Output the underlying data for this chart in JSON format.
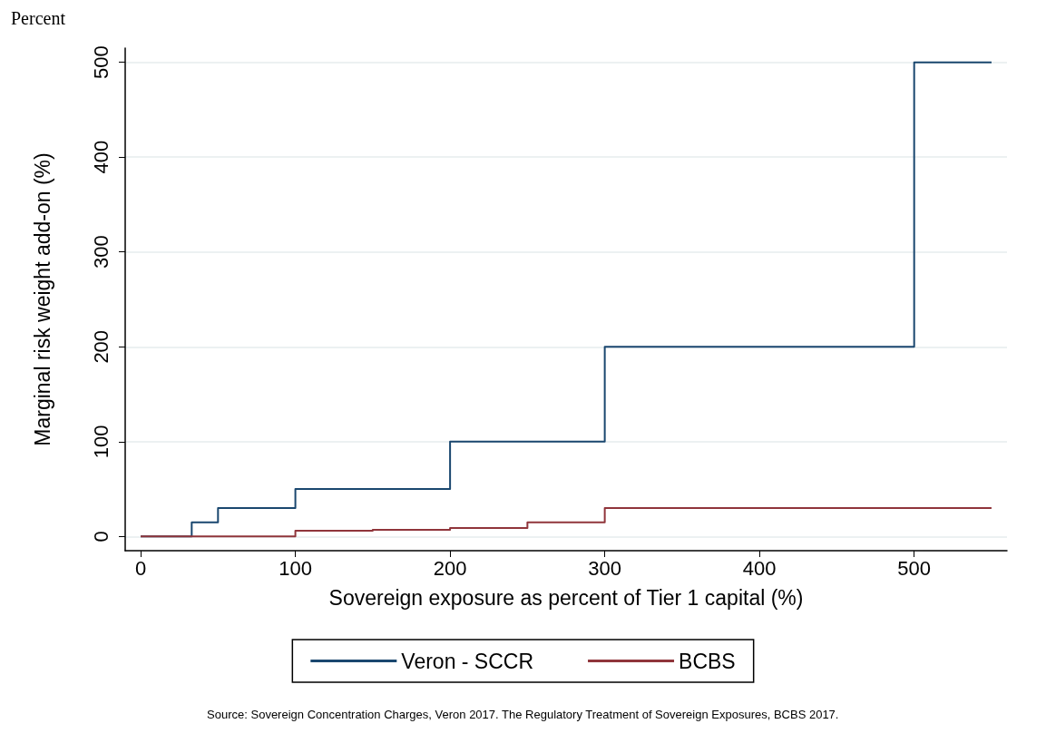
{
  "chart_data": {
    "type": "step",
    "xlabel": "Sovereign exposure as percent of Tier 1 capital (%)",
    "ylabel": "Marginal risk weight add-on (%)",
    "series": [
      {
        "name": "Veron - SCCR",
        "color": "#1a476f",
        "x": [
          0,
          33,
          50,
          100,
          200,
          300,
          500,
          550
        ],
        "values": [
          0,
          15,
          30,
          50,
          100,
          200,
          500,
          500
        ]
      },
      {
        "name": "BCBS",
        "color": "#90353b",
        "x": [
          0,
          100,
          150,
          200,
          250,
          300,
          550
        ],
        "values": [
          0,
          6,
          7,
          9,
          15,
          30,
          30
        ]
      }
    ],
    "xlim": [
      -10,
      560
    ],
    "xticks": [
      0,
      100,
      200,
      300,
      400,
      500
    ],
    "ylim": [
      -15,
      515
    ],
    "yticks": [
      0,
      100,
      200,
      300,
      400,
      500
    ],
    "grid": "y",
    "legend": "bottom",
    "marker": "none",
    "line_style": "solid",
    "annotations": [
      "Percent",
      "Source: Sovereign Concentration Charges, Veron 2017. The Regulatory Treatment of Sovereign Exposures, BCBS 2017."
    ]
  }
}
